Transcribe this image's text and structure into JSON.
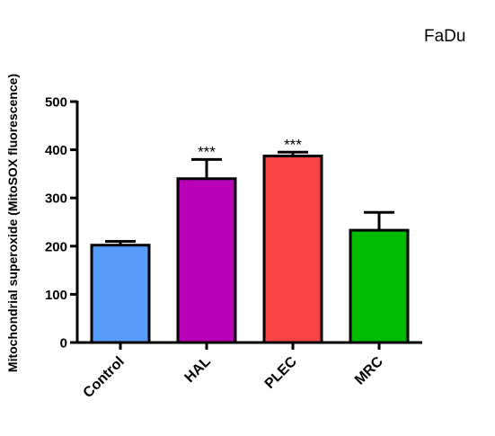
{
  "chart_data": {
    "type": "bar",
    "title": "FaDu",
    "ylabel": "Mitochondrial superoxide (MitoSOX fluorescence)",
    "xlabel": "",
    "ylim": [
      0,
      500
    ],
    "yticks": [
      0,
      100,
      200,
      300,
      400,
      500
    ],
    "categories": [
      "Control",
      "HAL",
      "PLEC",
      "MRC"
    ],
    "values": [
      202,
      340,
      387,
      233
    ],
    "errors": [
      8,
      40,
      8,
      37
    ],
    "significance": [
      "",
      "***",
      "***",
      ""
    ],
    "colors": [
      "#579cfb",
      "#b900b9",
      "#f84444",
      "#00bb00"
    ],
    "grid": false,
    "legend": "none"
  }
}
